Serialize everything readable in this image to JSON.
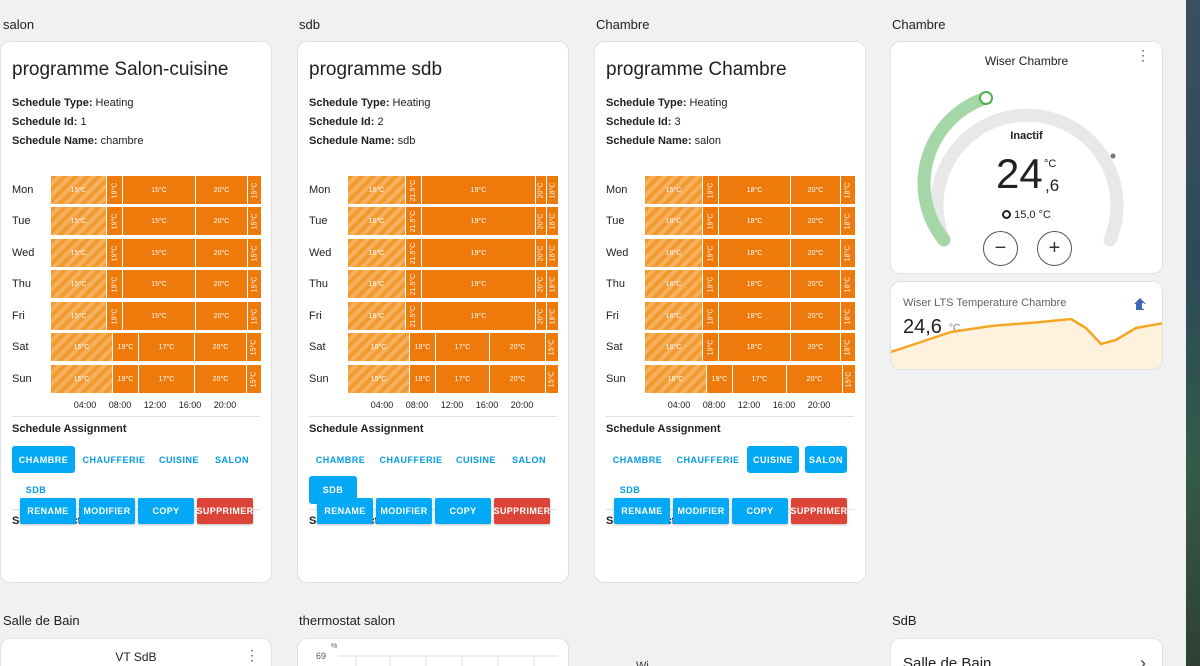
{
  "columns": [
    "salon",
    "sdb",
    "Chambre",
    "Chambre"
  ],
  "labels": {
    "type": "Schedule Type:",
    "id": "Schedule Id:",
    "name": "Schedule Name:",
    "assignment": "Schedule Assignment",
    "actions": "Schedule Actions"
  },
  "assign_options": [
    "CHAMBRE",
    "CHAUFFERIE",
    "CUISINE",
    "SALON",
    "SDB"
  ],
  "actions": [
    "RENAME",
    "MODIFIER",
    "COPY",
    "SUPPRIMER"
  ],
  "time_ticks": [
    "04:00",
    "08:00",
    "12:00",
    "16:00",
    "20:00"
  ],
  "schedules": [
    {
      "title": "programme Salon-cuisine",
      "type": "Heating",
      "id": "1",
      "name": "chambre",
      "active_assign": [
        "CHAMBRE"
      ],
      "days": [
        {
          "label": "Mon",
          "segments": [
            {
              "text": "15°C",
              "w": 56,
              "off": true
            },
            {
              "text": "19°C",
              "w": 16,
              "vert": true
            },
            {
              "text": "15°C",
              "w": 73
            },
            {
              "text": "20°C",
              "w": 52
            },
            {
              "text": "15°C",
              "w": 14,
              "vert": true
            }
          ]
        },
        {
          "label": "Tue",
          "segments": [
            {
              "text": "15°C",
              "w": 56,
              "off": true
            },
            {
              "text": "19°C",
              "w": 16,
              "vert": true
            },
            {
              "text": "15°C",
              "w": 73
            },
            {
              "text": "20°C",
              "w": 52
            },
            {
              "text": "15°C",
              "w": 14,
              "vert": true
            }
          ]
        },
        {
          "label": "Wed",
          "segments": [
            {
              "text": "15°C",
              "w": 56,
              "off": true
            },
            {
              "text": "19°C",
              "w": 16,
              "vert": true
            },
            {
              "text": "15°C",
              "w": 73
            },
            {
              "text": "20°C",
              "w": 52
            },
            {
              "text": "15°C",
              "w": 14,
              "vert": true
            }
          ]
        },
        {
          "label": "Thu",
          "segments": [
            {
              "text": "15°C",
              "w": 56,
              "off": true
            },
            {
              "text": "19°C",
              "w": 16,
              "vert": true
            },
            {
              "text": "15°C",
              "w": 73
            },
            {
              "text": "20°C",
              "w": 52
            },
            {
              "text": "15°C",
              "w": 14,
              "vert": true
            }
          ]
        },
        {
          "label": "Fri",
          "segments": [
            {
              "text": "15°C",
              "w": 56,
              "off": true
            },
            {
              "text": "19°C",
              "w": 16,
              "vert": true
            },
            {
              "text": "15°C",
              "w": 73
            },
            {
              "text": "20°C",
              "w": 52
            },
            {
              "text": "15°C",
              "w": 14,
              "vert": true
            }
          ]
        },
        {
          "label": "Sat",
          "segments": [
            {
              "text": "15°C",
              "w": 62,
              "off": true
            },
            {
              "text": "19°C",
              "w": 26
            },
            {
              "text": "17°C",
              "w": 56
            },
            {
              "text": "20°C",
              "w": 52
            },
            {
              "text": "15°C",
              "w": 15,
              "vert": true
            }
          ]
        },
        {
          "label": "Sun",
          "segments": [
            {
              "text": "15°C",
              "w": 62,
              "off": true
            },
            {
              "text": "19°C",
              "w": 26
            },
            {
              "text": "17°C",
              "w": 56
            },
            {
              "text": "20°C",
              "w": 52
            },
            {
              "text": "15°C",
              "w": 15,
              "vert": true
            }
          ]
        }
      ]
    },
    {
      "title": "programme sdb",
      "type": "Heating",
      "id": "2",
      "name": "sdb",
      "active_assign": [
        "SDB"
      ],
      "days": [
        {
          "label": "Mon",
          "segments": [
            {
              "text": "15°C",
              "w": 58,
              "off": true
            },
            {
              "text": "21.5°C",
              "w": 16,
              "vert": true
            },
            {
              "text": "19°C",
              "w": 114
            },
            {
              "text": "20°C",
              "w": 11,
              "vert": true
            },
            {
              "text": "18°C",
              "w": 12,
              "vert": true
            }
          ]
        },
        {
          "label": "Tue",
          "segments": [
            {
              "text": "18°C",
              "w": 58,
              "off": true
            },
            {
              "text": "21.5°C",
              "w": 16,
              "vert": true
            },
            {
              "text": "19°C",
              "w": 114
            },
            {
              "text": "20°C",
              "w": 11,
              "vert": true
            },
            {
              "text": "18°C",
              "w": 12,
              "vert": true
            }
          ]
        },
        {
          "label": "Wed",
          "segments": [
            {
              "text": "18°C",
              "w": 58,
              "off": true
            },
            {
              "text": "21.5°C",
              "w": 16,
              "vert": true
            },
            {
              "text": "19°C",
              "w": 114
            },
            {
              "text": "20°C",
              "w": 11,
              "vert": true
            },
            {
              "text": "18°C",
              "w": 12,
              "vert": true
            }
          ]
        },
        {
          "label": "Thu",
          "segments": [
            {
              "text": "18°C",
              "w": 58,
              "off": true
            },
            {
              "text": "21.5°C",
              "w": 16,
              "vert": true
            },
            {
              "text": "19°C",
              "w": 114
            },
            {
              "text": "20°C",
              "w": 11,
              "vert": true
            },
            {
              "text": "18°C",
              "w": 12,
              "vert": true
            }
          ]
        },
        {
          "label": "Fri",
          "segments": [
            {
              "text": "18°C",
              "w": 58,
              "off": true
            },
            {
              "text": "21.5°C",
              "w": 16,
              "vert": true
            },
            {
              "text": "19°C",
              "w": 114
            },
            {
              "text": "20°C",
              "w": 11,
              "vert": true
            },
            {
              "text": "18°C",
              "w": 12,
              "vert": true
            }
          ]
        },
        {
          "label": "Sat",
          "segments": [
            {
              "text": "18°C",
              "w": 62,
              "off": true
            },
            {
              "text": "19°C",
              "w": 26
            },
            {
              "text": "17°C",
              "w": 54
            },
            {
              "text": "20°C",
              "w": 56
            },
            {
              "text": "15°C",
              "w": 13,
              "vert": true
            }
          ]
        },
        {
          "label": "Sun",
          "segments": [
            {
              "text": "15°C",
              "w": 62,
              "off": true
            },
            {
              "text": "19°C",
              "w": 26
            },
            {
              "text": "17°C",
              "w": 54
            },
            {
              "text": "20°C",
              "w": 56
            },
            {
              "text": "15°C",
              "w": 13,
              "vert": true
            }
          ]
        }
      ]
    },
    {
      "title": "programme Chambre",
      "type": "Heating",
      "id": "3",
      "name": "salon",
      "active_assign": [
        "CUISINE",
        "SALON"
      ],
      "days": [
        {
          "label": "Mon",
          "segments": [
            {
              "text": "15°C",
              "w": 58,
              "off": true
            },
            {
              "text": "19°C",
              "w": 16,
              "vert": true
            },
            {
              "text": "18°C",
              "w": 72
            },
            {
              "text": "20°C",
              "w": 50
            },
            {
              "text": "18°C",
              "w": 15,
              "vert": true
            }
          ]
        },
        {
          "label": "Tue",
          "segments": [
            {
              "text": "18°C",
              "w": 58,
              "off": true
            },
            {
              "text": "19°C",
              "w": 16,
              "vert": true
            },
            {
              "text": "18°C",
              "w": 72
            },
            {
              "text": "20°C",
              "w": 50
            },
            {
              "text": "18°C",
              "w": 15,
              "vert": true
            }
          ]
        },
        {
          "label": "Wed",
          "segments": [
            {
              "text": "18°C",
              "w": 58,
              "off": true
            },
            {
              "text": "19°C",
              "w": 16,
              "vert": true
            },
            {
              "text": "18°C",
              "w": 72
            },
            {
              "text": "20°C",
              "w": 50
            },
            {
              "text": "18°C",
              "w": 15,
              "vert": true
            }
          ]
        },
        {
          "label": "Thu",
          "segments": [
            {
              "text": "18°C",
              "w": 58,
              "off": true
            },
            {
              "text": "19°C",
              "w": 16,
              "vert": true
            },
            {
              "text": "18°C",
              "w": 72
            },
            {
              "text": "20°C",
              "w": 50
            },
            {
              "text": "18°C",
              "w": 15,
              "vert": true
            }
          ]
        },
        {
          "label": "Fri",
          "segments": [
            {
              "text": "18°C",
              "w": 58,
              "off": true
            },
            {
              "text": "19°C",
              "w": 16,
              "vert": true
            },
            {
              "text": "18°C",
              "w": 72
            },
            {
              "text": "20°C",
              "w": 50
            },
            {
              "text": "18°C",
              "w": 15,
              "vert": true
            }
          ]
        },
        {
          "label": "Sat",
          "segments": [
            {
              "text": "18°C",
              "w": 58,
              "off": true
            },
            {
              "text": "19°C",
              "w": 16,
              "vert": true
            },
            {
              "text": "18°C",
              "w": 72
            },
            {
              "text": "20°C",
              "w": 50
            },
            {
              "text": "18°C",
              "w": 15,
              "vert": true
            }
          ]
        },
        {
          "label": "Sun",
          "segments": [
            {
              "text": "18°C",
              "w": 62,
              "off": true
            },
            {
              "text": "19°C",
              "w": 26
            },
            {
              "text": "17°C",
              "w": 54
            },
            {
              "text": "20°C",
              "w": 56
            },
            {
              "text": "15°C",
              "w": 13,
              "vert": true
            }
          ]
        }
      ]
    }
  ],
  "thermostat": {
    "name": "Wiser Chambre",
    "state": "Inactif",
    "temp_int": "24",
    "temp_dec": ",6",
    "unit": "°C",
    "target": "15,0 °C",
    "minus": "−",
    "plus": "+",
    "arc_color": "#a5d6a7",
    "track_color": "#e8e8e8"
  },
  "sensor": {
    "name": "Wiser LTS Temperature Chambre",
    "value": "24,6",
    "unit": "°C",
    "line_color": "#f5a623",
    "icon": "home-thermometer-icon"
  },
  "bottom": {
    "titles": [
      "Salle de Bain",
      "thermostat salon",
      "SdB"
    ],
    "vt_name": "VT SdB",
    "y_unit": "%",
    "y_top": "69",
    "partial_label": "Wi",
    "sdb_card_title": "Salle de Bain",
    "chevron": "›"
  }
}
